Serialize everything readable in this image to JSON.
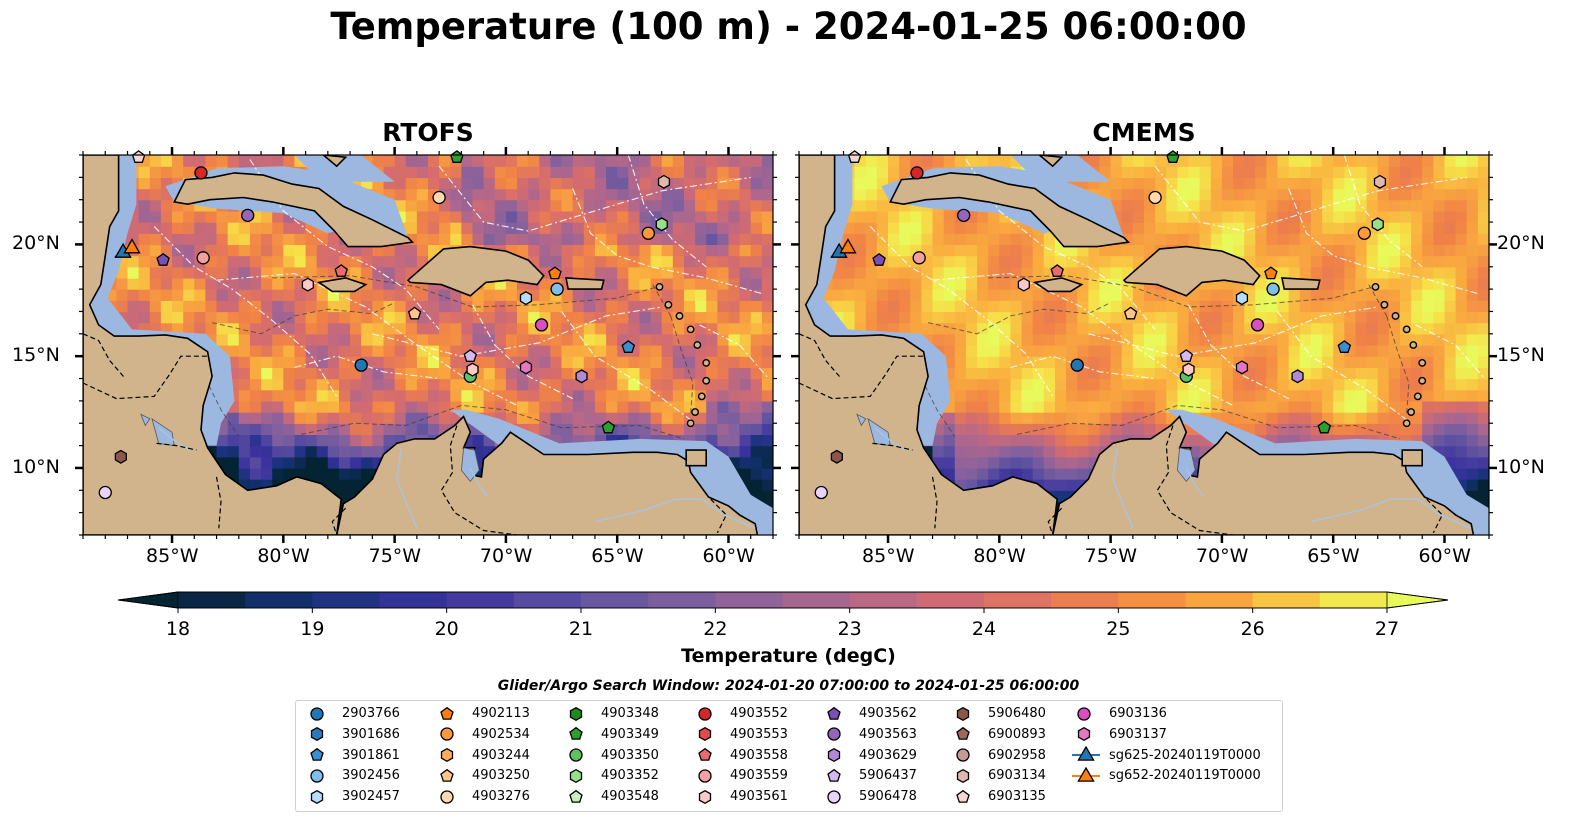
{
  "title": "Temperature (100 m) - 2024-01-25 06:00:00",
  "panels": [
    {
      "title": "RTOFS",
      "variant": "rtofs"
    },
    {
      "title": "CMEMS",
      "variant": "cmems"
    }
  ],
  "map": {
    "lon_range": [
      -89,
      -58
    ],
    "lat_range": [
      7,
      24
    ],
    "lon_ticks": [
      {
        "value": -85,
        "label": "85°W"
      },
      {
        "value": -80,
        "label": "80°W"
      },
      {
        "value": -75,
        "label": "75°W"
      },
      {
        "value": -70,
        "label": "70°W"
      },
      {
        "value": -65,
        "label": "65°W"
      },
      {
        "value": -60,
        "label": "60°W"
      }
    ],
    "lat_ticks": [
      {
        "value": 20,
        "label": "20°N"
      },
      {
        "value": 15,
        "label": "15°N"
      },
      {
        "value": 10,
        "label": "10°N"
      }
    ],
    "colors": {
      "land": "#d2b48c",
      "shallow": "#9cb8e0",
      "deep": "#0a2a3f",
      "coast": "#000000"
    }
  },
  "colorbar": {
    "title": "Temperature (degC)",
    "min": 18,
    "max": 27,
    "ticks": [
      18,
      19,
      20,
      21,
      22,
      23,
      24,
      25,
      26,
      27
    ],
    "extend": "both",
    "colormap": "thermal"
  },
  "legend": {
    "title": "Glider/Argo Search Window: 2024-01-20 07:00:00 to 2024-01-25 06:00:00",
    "columns": [
      [
        {
          "label": "2903766",
          "marker": "circle",
          "color": "#1f77b4"
        },
        {
          "label": "3901686",
          "marker": "hexagon",
          "color": "#2b7bba"
        },
        {
          "label": "3901861",
          "marker": "pentagon",
          "color": "#3a8fd0"
        },
        {
          "label": "3902456",
          "marker": "circle",
          "color": "#7fbfe8"
        },
        {
          "label": "3902457",
          "marker": "hexagon",
          "color": "#b6defa"
        }
      ],
      [
        {
          "label": "4902113",
          "marker": "pentagon",
          "color": "#ff7f0e"
        },
        {
          "label": "4902534",
          "marker": "circle",
          "color": "#ff9a3c"
        },
        {
          "label": "4903244",
          "marker": "hexagon",
          "color": "#ffad5c"
        },
        {
          "label": "4903250",
          "marker": "pentagon",
          "color": "#ffc58a"
        },
        {
          "label": "4903276",
          "marker": "circle",
          "color": "#ffd9b0"
        }
      ],
      [
        {
          "label": "4903348",
          "marker": "hexagon",
          "color": "#1e8a1e"
        },
        {
          "label": "4903349",
          "marker": "pentagon",
          "color": "#2ca02c"
        },
        {
          "label": "4903350",
          "marker": "circle",
          "color": "#5ec25e"
        },
        {
          "label": "4903352",
          "marker": "hexagon",
          "color": "#98df8a"
        },
        {
          "label": "4903548",
          "marker": "pentagon",
          "color": "#c8f0c0"
        }
      ],
      [
        {
          "label": "4903552",
          "marker": "circle",
          "color": "#d62728"
        },
        {
          "label": "4903553",
          "marker": "hexagon",
          "color": "#e04a4a"
        },
        {
          "label": "4903558",
          "marker": "pentagon",
          "color": "#ea6b6b"
        },
        {
          "label": "4903559",
          "marker": "circle",
          "color": "#f4a0a0"
        },
        {
          "label": "4903561",
          "marker": "hexagon",
          "color": "#fbc9c9"
        }
      ],
      [
        {
          "label": "4903562",
          "marker": "pentagon",
          "color": "#7b4fb8"
        },
        {
          "label": "4903563",
          "marker": "circle",
          "color": "#9467bd"
        },
        {
          "label": "4903629",
          "marker": "hexagon",
          "color": "#b08ad6"
        },
        {
          "label": "5906437",
          "marker": "pentagon",
          "color": "#d4b8f0"
        },
        {
          "label": "5906478",
          "marker": "circle",
          "color": "#e8d4fa"
        }
      ],
      [
        {
          "label": "5906480",
          "marker": "hexagon",
          "color": "#8c564b"
        },
        {
          "label": "6900893",
          "marker": "pentagon",
          "color": "#a0675c"
        },
        {
          "label": "6902958",
          "marker": "circle",
          "color": "#c49c94"
        },
        {
          "label": "6903134",
          "marker": "hexagon",
          "color": "#e0b8b0"
        },
        {
          "label": "6903135",
          "marker": "pentagon",
          "color": "#f4d8d0"
        }
      ],
      [
        {
          "label": "6903136",
          "marker": "circle",
          "color": "#d94fc2"
        },
        {
          "label": "6903137",
          "marker": "hexagon",
          "color": "#e377c2"
        },
        {
          "label": "sg625-20240119T0000",
          "marker": "triangle-line",
          "color": "#1f77b4"
        },
        {
          "label": "sg652-20240119T0000",
          "marker": "triangle-line",
          "color": "#ff7f0e"
        }
      ]
    ]
  },
  "floats": [
    {
      "lon": -76.5,
      "lat": 14.6,
      "marker": "circle",
      "color": "#1f77b4"
    },
    {
      "lon": -64.5,
      "lat": 15.4,
      "marker": "pentagon",
      "color": "#3a8fd0"
    },
    {
      "lon": -67.7,
      "lat": 18.0,
      "marker": "circle",
      "color": "#7fbfe8"
    },
    {
      "lon": -69.1,
      "lat": 17.6,
      "marker": "hexagon",
      "color": "#b6defa"
    },
    {
      "lon": -67.8,
      "lat": 18.7,
      "marker": "pentagon",
      "color": "#ff7f0e"
    },
    {
      "lon": -63.6,
      "lat": 20.5,
      "marker": "circle",
      "color": "#ff9a3c"
    },
    {
      "lon": -74.1,
      "lat": 16.9,
      "marker": "pentagon",
      "color": "#ffc58a"
    },
    {
      "lon": -73.0,
      "lat": 22.1,
      "marker": "circle",
      "color": "#ffd9b0"
    },
    {
      "lon": -65.4,
      "lat": 11.8,
      "marker": "pentagon",
      "color": "#2ca02c"
    },
    {
      "lon": -71.6,
      "lat": 14.1,
      "marker": "circle",
      "color": "#5ec25e"
    },
    {
      "lon": -63.0,
      "lat": 20.9,
      "marker": "hexagon",
      "color": "#98df8a"
    },
    {
      "lon": -72.2,
      "lat": 23.9,
      "marker": "pentagon",
      "color": "#2ca02c"
    },
    {
      "lon": -83.7,
      "lat": 23.2,
      "marker": "circle",
      "color": "#d62728"
    },
    {
      "lon": -77.4,
      "lat": 18.8,
      "marker": "pentagon",
      "color": "#ea6b6b"
    },
    {
      "lon": -83.6,
      "lat": 19.4,
      "marker": "circle",
      "color": "#f4a0a0"
    },
    {
      "lon": -78.9,
      "lat": 18.2,
      "marker": "hexagon",
      "color": "#fbc9c9"
    },
    {
      "lon": -71.5,
      "lat": 14.4,
      "marker": "hexagon",
      "color": "#fbc9c9"
    },
    {
      "lon": -85.4,
      "lat": 19.3,
      "marker": "pentagon",
      "color": "#7b4fb8"
    },
    {
      "lon": -81.6,
      "lat": 21.3,
      "marker": "circle",
      "color": "#9467bd"
    },
    {
      "lon": -66.6,
      "lat": 14.1,
      "marker": "hexagon",
      "color": "#b08ad6"
    },
    {
      "lon": -71.6,
      "lat": 15.0,
      "marker": "pentagon",
      "color": "#d4b8f0"
    },
    {
      "lon": -88.0,
      "lat": 8.9,
      "marker": "circle",
      "color": "#e8d4fa"
    },
    {
      "lon": -87.3,
      "lat": 10.5,
      "marker": "hexagon",
      "color": "#8c564b"
    },
    {
      "lon": -68.4,
      "lat": 16.4,
      "marker": "circle",
      "color": "#d94fc2"
    },
    {
      "lon": -69.1,
      "lat": 14.5,
      "marker": "hexagon",
      "color": "#e377c2"
    },
    {
      "lon": -62.9,
      "lat": 22.8,
      "marker": "hexagon",
      "color": "#e0b8b0"
    },
    {
      "lon": -86.5,
      "lat": 23.9,
      "marker": "pentagon",
      "color": "#f4d8d0"
    },
    {
      "lon": -87.2,
      "lat": 19.7,
      "marker": "triangle",
      "color": "#1f77b4"
    },
    {
      "lon": -86.8,
      "lat": 19.9,
      "marker": "triangle",
      "color": "#ff7f0e"
    }
  ]
}
